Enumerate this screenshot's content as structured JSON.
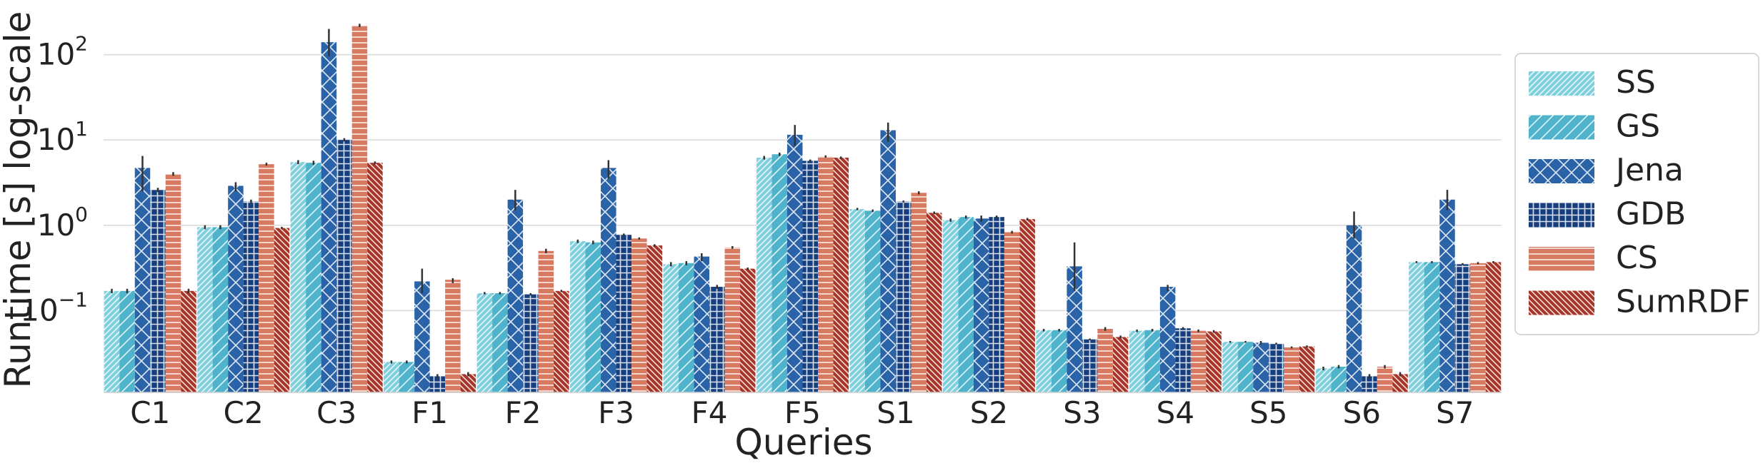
{
  "chart_data": {
    "type": "bar",
    "xlabel": "Queries",
    "ylabel": "Runtime [s] log-scale",
    "yscale": "log",
    "ylim": [
      0.011,
      250
    ],
    "yticks": [
      0.1,
      1,
      10,
      100
    ],
    "ytick_labels": [
      {
        "base": "10",
        "exp": "−1"
      },
      {
        "base": "10",
        "exp": "0"
      },
      {
        "base": "10",
        "exp": "1"
      },
      {
        "base": "10",
        "exp": "2"
      }
    ],
    "grid": "horizontal",
    "legend_position": "right",
    "categories": [
      "C1",
      "C2",
      "C3",
      "F1",
      "F2",
      "F3",
      "F4",
      "F5",
      "S1",
      "S2",
      "S3",
      "S4",
      "S5",
      "S6",
      "S7"
    ],
    "series": [
      {
        "name": "SS",
        "color": "#7fcfdd",
        "hatch": "diag-fine",
        "values": [
          0.17,
          0.95,
          5.5,
          0.025,
          0.16,
          0.65,
          0.35,
          6.2,
          1.55,
          1.15,
          0.059,
          0.058,
          0.043,
          0.021,
          0.37
        ]
      },
      {
        "name": "GS",
        "color": "#4fb3cc",
        "hatch": "diag-coarse",
        "values": [
          0.17,
          0.95,
          5.4,
          0.025,
          0.16,
          0.63,
          0.36,
          6.8,
          1.48,
          1.25,
          0.059,
          0.059,
          0.043,
          0.022,
          0.37
        ]
      },
      {
        "name": "Jena",
        "color": "#2a63a8",
        "hatch": "cross",
        "values": [
          4.7,
          2.9,
          140,
          0.22,
          2.0,
          4.7,
          0.43,
          11.5,
          13,
          1.2,
          0.33,
          0.19,
          0.042,
          1.0,
          2.0
        ]
      },
      {
        "name": "GDB",
        "color": "#173f80",
        "hatch": "grid",
        "values": [
          2.6,
          1.9,
          10,
          0.017,
          0.155,
          0.78,
          0.19,
          5.7,
          1.9,
          1.25,
          0.046,
          0.062,
          0.041,
          0.017,
          0.35
        ]
      },
      {
        "name": "CS",
        "color": "#d77a61",
        "hatch": "horiz",
        "values": [
          4.0,
          5.2,
          220,
          0.23,
          0.5,
          0.7,
          0.55,
          6.4,
          2.4,
          0.83,
          0.061,
          0.058,
          0.037,
          0.022,
          0.36
        ]
      },
      {
        "name": "SumRDF",
        "color": "#a83427",
        "hatch": "diag-rev",
        "values": [
          0.17,
          0.93,
          5.4,
          0.018,
          0.17,
          0.58,
          0.31,
          6.2,
          1.4,
          1.18,
          0.049,
          0.057,
          0.038,
          0.018,
          0.37
        ]
      }
    ],
    "error_bars": {
      "Jena": [
        [
          2.5,
          6.5
        ],
        [
          2.5,
          3.2
        ],
        [
          95,
          200
        ],
        [
          0.16,
          0.31
        ],
        [
          1.5,
          2.6
        ],
        [
          3.5,
          5.8
        ],
        [
          0.38,
          0.47
        ],
        [
          8.5,
          15
        ],
        [
          9.5,
          16
        ],
        [
          1.1,
          1.3
        ],
        [
          0.17,
          0.63
        ],
        [
          0.17,
          0.2
        ],
        [
          0.04,
          0.044
        ],
        [
          0.7,
          1.45
        ],
        [
          1.5,
          2.6
        ]
      ],
      "SS": [
        [
          0.16,
          0.18
        ],
        [
          0.9,
          1.0
        ],
        [
          5.2,
          5.8
        ],
        [
          0.024,
          0.026
        ],
        [
          0.155,
          0.165
        ],
        [
          0.62,
          0.68
        ],
        [
          0.33,
          0.37
        ],
        [
          5.9,
          6.5
        ],
        [
          1.5,
          1.6
        ],
        [
          1.1,
          1.2
        ],
        [
          0.057,
          0.061
        ],
        [
          0.056,
          0.06
        ],
        [
          0.042,
          0.044
        ],
        [
          0.02,
          0.022
        ],
        [
          0.36,
          0.38
        ]
      ],
      "GDB": [
        [
          2.45,
          2.75
        ],
        [
          1.8,
          2.0
        ],
        [
          9.6,
          10.5
        ],
        [
          0.016,
          0.018
        ],
        [
          0.15,
          0.16
        ],
        [
          0.75,
          0.8
        ],
        [
          0.18,
          0.2
        ],
        [
          5.5,
          5.9
        ],
        [
          1.85,
          1.95
        ],
        [
          1.2,
          1.3
        ],
        [
          0.045,
          0.047
        ],
        [
          0.06,
          0.064
        ],
        [
          0.04,
          0.042
        ],
        [
          0.016,
          0.018
        ],
        [
          0.34,
          0.36
        ]
      ],
      "CS": [
        [
          3.8,
          4.2
        ],
        [
          5.0,
          5.4
        ],
        [
          210,
          230
        ],
        [
          0.21,
          0.24
        ],
        [
          0.47,
          0.53
        ],
        [
          0.68,
          0.72
        ],
        [
          0.53,
          0.57
        ],
        [
          6.2,
          6.6
        ],
        [
          2.3,
          2.5
        ],
        [
          0.8,
          0.86
        ],
        [
          0.058,
          0.064
        ],
        [
          0.056,
          0.06
        ],
        [
          0.036,
          0.038
        ],
        [
          0.021,
          0.023
        ],
        [
          0.35,
          0.37
        ]
      ],
      "GS": [
        [
          0.16,
          0.18
        ],
        [
          0.9,
          1.0
        ],
        [
          5.1,
          5.7
        ],
        [
          0.024,
          0.026
        ],
        [
          0.155,
          0.165
        ],
        [
          0.6,
          0.66
        ],
        [
          0.34,
          0.38
        ],
        [
          6.5,
          7.1
        ],
        [
          1.43,
          1.53
        ],
        [
          1.2,
          1.3
        ],
        [
          0.057,
          0.061
        ],
        [
          0.057,
          0.061
        ],
        [
          0.042,
          0.044
        ],
        [
          0.021,
          0.023
        ],
        [
          0.36,
          0.38
        ]
      ],
      "SumRDF": [
        [
          0.16,
          0.18
        ],
        [
          0.9,
          0.96
        ],
        [
          5.2,
          5.6
        ],
        [
          0.017,
          0.019
        ],
        [
          0.165,
          0.175
        ],
        [
          0.56,
          0.6
        ],
        [
          0.3,
          0.32
        ],
        [
          6.0,
          6.4
        ],
        [
          1.35,
          1.45
        ],
        [
          1.14,
          1.22
        ],
        [
          0.047,
          0.051
        ],
        [
          0.055,
          0.059
        ],
        [
          0.037,
          0.039
        ],
        [
          0.017,
          0.019
        ],
        [
          0.36,
          0.38
        ]
      ]
    }
  }
}
